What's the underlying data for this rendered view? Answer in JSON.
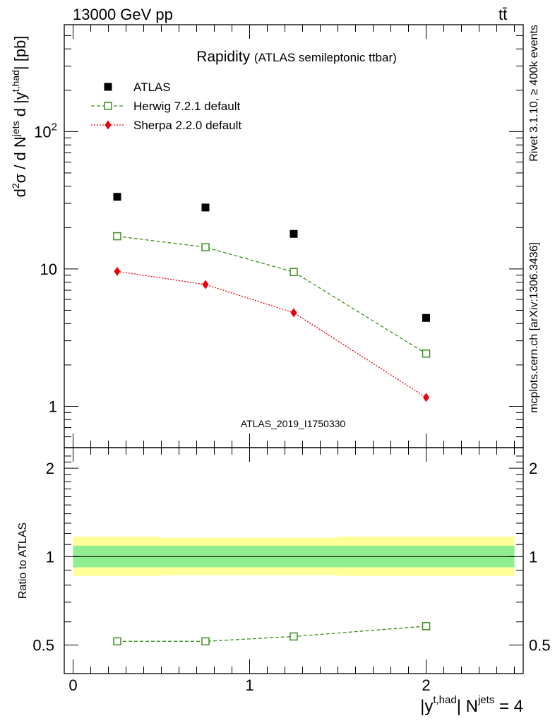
{
  "header": {
    "left": "13000 GeV pp",
    "right": "tt̄"
  },
  "side": {
    "top": "Rivet 3.1.10, ≥ 400k events",
    "bottom": "mcplots.cern.ch [arXiv:1306.3436]"
  },
  "chart_data": [
    {
      "type": "scatter",
      "title": "Rapidity",
      "subtitle": "(ATLAS semileptonic ttbar)",
      "watermark": "ATLAS_2019_I1750330",
      "yscale": "log",
      "ylabel": {
        "base": "d",
        "sup1": "2",
        "sigma": "σ / d N",
        "sup2": "jets",
        "mid": " d |y",
        "sup3": "t,had",
        "end": "| [pb]"
      },
      "ylim": [
        0.5,
        600
      ],
      "xlim": [
        -0.05,
        2.55
      ],
      "y_ticks": [
        {
          "value": 1,
          "label": "1",
          "sup": ""
        },
        {
          "value": 10,
          "label": "10",
          "sup": ""
        },
        {
          "value": 100,
          "label": "10",
          "sup": "2"
        }
      ],
      "legend_position": "top-left",
      "series": [
        {
          "name": "ATLAS",
          "color": "#000000",
          "marker": "filled-square",
          "x": [
            0.25,
            0.75,
            1.25,
            2.0
          ],
          "y": [
            33.5,
            28.0,
            18.0,
            4.4
          ]
        },
        {
          "name": "Herwig 7.2.1 default",
          "color": "#3a8e1c",
          "marker": "open-square",
          "line": "dashed",
          "x": [
            0.25,
            0.75,
            1.25,
            2.0
          ],
          "y": [
            17.3,
            14.4,
            9.5,
            2.42
          ]
        },
        {
          "name": "Sherpa 2.2.0 default",
          "color": "#e8000b",
          "marker": "filled-diamond",
          "line": "dotted",
          "x": [
            0.25,
            0.75,
            1.25,
            2.0
          ],
          "y": [
            9.6,
            7.7,
            4.8,
            1.16
          ]
        }
      ]
    },
    {
      "type": "scatter",
      "ylabel": "Ratio to ATLAS",
      "yscale": "log",
      "ylim": [
        0.4,
        2.35
      ],
      "xlim": [
        -0.05,
        2.55
      ],
      "y_ticks": [
        0.5,
        1,
        2
      ],
      "x_ticks": [
        0,
        1,
        2
      ],
      "xlabel": {
        "pre": "|y",
        "sup1": "t,had",
        "mid": "| N",
        "sup2": "jets",
        "end": " = 4"
      },
      "uncertainty_bands": [
        {
          "x0": 0.0,
          "x1": 0.5,
          "stat_lo": 0.92,
          "stat_hi": 1.09,
          "total_lo": 0.86,
          "total_hi": 1.17
        },
        {
          "x0": 0.5,
          "x1": 1.0,
          "stat_lo": 0.92,
          "stat_hi": 1.09,
          "total_lo": 0.865,
          "total_hi": 1.16
        },
        {
          "x0": 1.0,
          "x1": 1.5,
          "stat_lo": 0.92,
          "stat_hi": 1.09,
          "total_lo": 0.865,
          "total_hi": 1.16
        },
        {
          "x0": 1.5,
          "x1": 2.5,
          "stat_lo": 0.92,
          "stat_hi": 1.09,
          "total_lo": 0.86,
          "total_hi": 1.17
        }
      ],
      "band_colors": {
        "total": "#ffff99",
        "stat": "#90ee90"
      },
      "series": [
        {
          "name": "Herwig 7.2.1 default",
          "color": "#3a8e1c",
          "marker": "open-square",
          "line": "dashed",
          "x": [
            0.25,
            0.75,
            1.25,
            2.0
          ],
          "y": [
            0.515,
            0.515,
            0.535,
            0.58
          ]
        }
      ]
    }
  ]
}
